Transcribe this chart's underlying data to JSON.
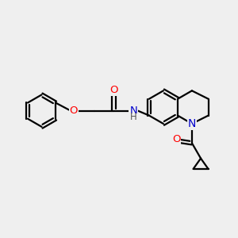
{
  "bg_color": "#efefef",
  "bond_color": "#000000",
  "bond_width": 1.6,
  "atom_colors": {
    "O": "#ff0000",
    "N": "#0000cc",
    "C": "#000000",
    "H": "#555555"
  },
  "font_size": 9.5,
  "fig_size": [
    3.0,
    3.0
  ],
  "dpi": 100
}
